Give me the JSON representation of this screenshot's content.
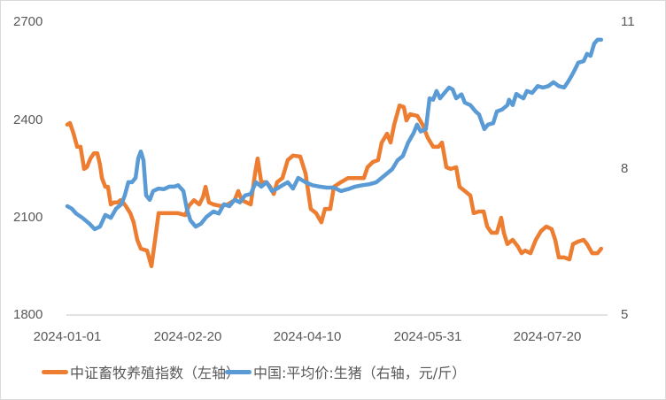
{
  "chart_data": {
    "type": "line",
    "title": "",
    "xlabel": "",
    "ylabel_left": "",
    "ylabel_right": "",
    "x_ticks": [
      "2024-01-01",
      "2024-02-20",
      "2024-04-10",
      "2024-05-31",
      "2024-07-20"
    ],
    "x_range_days": [
      0,
      222
    ],
    "x_start_date": "2024-01-01",
    "y_left": {
      "ticks": [
        "1800",
        "2100",
        "2400",
        "2700"
      ],
      "range": [
        1800,
        2700
      ]
    },
    "y_right": {
      "ticks": [
        "5",
        "8",
        "11"
      ],
      "range": [
        5,
        11
      ]
    },
    "grid": false,
    "legend_position": "bottom",
    "series": [
      {
        "name": "中证畜牧养殖指数（左轴）",
        "axis": "left",
        "color": "#ed7d31",
        "points": [
          [
            0,
            2385
          ],
          [
            1.1,
            2390
          ],
          [
            2.6,
            2357
          ],
          [
            4.1,
            2317
          ],
          [
            5.5,
            2317
          ],
          [
            7,
            2249
          ],
          [
            8.1,
            2254
          ],
          [
            9.6,
            2281
          ],
          [
            11.1,
            2297
          ],
          [
            12.5,
            2297
          ],
          [
            13.6,
            2262
          ],
          [
            14.4,
            2221
          ],
          [
            15.8,
            2194
          ],
          [
            16.9,
            2194
          ],
          [
            18.1,
            2140
          ],
          [
            19.5,
            2146
          ],
          [
            21,
            2146
          ],
          [
            22.1,
            2153
          ],
          [
            23.2,
            2146
          ],
          [
            24.3,
            2135
          ],
          [
            26.2,
            2113
          ],
          [
            27.6,
            2085
          ],
          [
            29.1,
            2031
          ],
          [
            30.6,
            2004
          ],
          [
            33.2,
            1998
          ],
          [
            35,
            1950
          ],
          [
            36.5,
            2031
          ],
          [
            38,
            2113
          ],
          [
            42.4,
            2113
          ],
          [
            46.1,
            2113
          ],
          [
            49.1,
            2107
          ],
          [
            50.5,
            2135
          ],
          [
            52.7,
            2153
          ],
          [
            54.9,
            2140
          ],
          [
            56.4,
            2162
          ],
          [
            57.5,
            2194
          ],
          [
            58.9,
            2146
          ],
          [
            60.8,
            2140
          ],
          [
            63.7,
            2135
          ],
          [
            66.7,
            2140
          ],
          [
            69.6,
            2153
          ],
          [
            71.1,
            2181
          ],
          [
            72.6,
            2153
          ],
          [
            76.3,
            2140
          ],
          [
            78.1,
            2235
          ],
          [
            79.2,
            2281
          ],
          [
            80.7,
            2208
          ],
          [
            82.9,
            2208
          ],
          [
            84.4,
            2194
          ],
          [
            85.9,
            2172
          ],
          [
            87.3,
            2208
          ],
          [
            89.5,
            2221
          ],
          [
            91.7,
            2276
          ],
          [
            93.9,
            2290
          ],
          [
            96.9,
            2287
          ],
          [
            99.1,
            2235
          ],
          [
            101.3,
            2126
          ],
          [
            103.5,
            2113
          ],
          [
            105.7,
            2085
          ],
          [
            107.2,
            2126
          ],
          [
            109.4,
            2126
          ],
          [
            110.9,
            2194
          ],
          [
            113.8,
            2208
          ],
          [
            116.8,
            2221
          ],
          [
            119,
            2221
          ],
          [
            123.4,
            2221
          ],
          [
            124.9,
            2254
          ],
          [
            127.1,
            2270
          ],
          [
            129.3,
            2276
          ],
          [
            130.8,
            2330
          ],
          [
            133,
            2357
          ],
          [
            134.5,
            2330
          ],
          [
            136,
            2385
          ],
          [
            138.2,
            2444
          ],
          [
            140,
            2439
          ],
          [
            141.1,
            2398
          ],
          [
            142.6,
            2417
          ],
          [
            145.6,
            2412
          ],
          [
            147.8,
            2385
          ],
          [
            150,
            2344
          ],
          [
            152.2,
            2317
          ],
          [
            154.4,
            2317
          ],
          [
            155.9,
            2330
          ],
          [
            157.7,
            2254
          ],
          [
            159.5,
            2249
          ],
          [
            161.8,
            2254
          ],
          [
            163.2,
            2194
          ],
          [
            165.4,
            2181
          ],
          [
            167.7,
            2167
          ],
          [
            169.1,
            2113
          ],
          [
            171.3,
            2118
          ],
          [
            173.2,
            2118
          ],
          [
            174.7,
            2072
          ],
          [
            176.5,
            2053
          ],
          [
            178.7,
            2053
          ],
          [
            180.5,
            2099
          ],
          [
            181.6,
            2053
          ],
          [
            183.1,
            2018
          ],
          [
            185.3,
            2031
          ],
          [
            187.5,
            2010
          ],
          [
            189,
            1990
          ],
          [
            190.5,
            1998
          ],
          [
            192.7,
            1990
          ],
          [
            194.9,
            2031
          ],
          [
            197.1,
            2058
          ],
          [
            199.3,
            2072
          ],
          [
            201.5,
            2064
          ],
          [
            203,
            2031
          ],
          [
            204.5,
            1977
          ],
          [
            206.7,
            1977
          ],
          [
            208.9,
            1971
          ],
          [
            210.4,
            2018
          ],
          [
            212.6,
            2026
          ],
          [
            214.8,
            2031
          ],
          [
            216.2,
            2018
          ],
          [
            218.4,
            1990
          ],
          [
            220.6,
            1990
          ],
          [
            222.1,
            2004
          ]
        ]
      },
      {
        "name": "中国:平均价:生猪（右轴，元/斤）",
        "axis": "right",
        "color": "#5b9bd5",
        "points": [
          [
            0,
            7.23
          ],
          [
            1.8,
            7.18
          ],
          [
            3.7,
            7.08
          ],
          [
            6.3,
            6.99
          ],
          [
            9.2,
            6.87
          ],
          [
            11.4,
            6.76
          ],
          [
            13.6,
            6.81
          ],
          [
            15.8,
            7.05
          ],
          [
            18.1,
            6.99
          ],
          [
            20.3,
            7.18
          ],
          [
            22.5,
            7.27
          ],
          [
            23.9,
            7.45
          ],
          [
            25.4,
            7.72
          ],
          [
            26.9,
            7.72
          ],
          [
            28.4,
            7.81
          ],
          [
            29.5,
            8.21
          ],
          [
            30.6,
            8.35
          ],
          [
            31.7,
            8.17
          ],
          [
            32.8,
            7.45
          ],
          [
            34.3,
            7.36
          ],
          [
            35.7,
            7.54
          ],
          [
            37.9,
            7.59
          ],
          [
            40.2,
            7.58
          ],
          [
            42.4,
            7.63
          ],
          [
            44.6,
            7.63
          ],
          [
            46.1,
            7.66
          ],
          [
            48.3,
            7.54
          ],
          [
            49.7,
            7.18
          ],
          [
            51.2,
            6.94
          ],
          [
            53.4,
            6.81
          ],
          [
            55.6,
            6.87
          ],
          [
            57.9,
            7.01
          ],
          [
            60.8,
            7.12
          ],
          [
            63,
            7.08
          ],
          [
            65.2,
            7.27
          ],
          [
            67.4,
            7.23
          ],
          [
            69.6,
            7.36
          ],
          [
            71.8,
            7.31
          ],
          [
            74,
            7.45
          ],
          [
            76.3,
            7.48
          ],
          [
            78.5,
            7.72
          ],
          [
            80.7,
            7.63
          ],
          [
            82.9,
            7.72
          ],
          [
            85.1,
            7.54
          ],
          [
            87.3,
            7.59
          ],
          [
            89.5,
            7.66
          ],
          [
            91.7,
            7.72
          ],
          [
            93.9,
            7.59
          ],
          [
            96.1,
            7.81
          ],
          [
            99.1,
            7.72
          ],
          [
            102,
            7.66
          ],
          [
            105,
            7.63
          ],
          [
            107.9,
            7.61
          ],
          [
            110.9,
            7.61
          ],
          [
            113.8,
            7.54
          ],
          [
            116.8,
            7.58
          ],
          [
            119.7,
            7.63
          ],
          [
            122.7,
            7.66
          ],
          [
            125.6,
            7.68
          ],
          [
            128.6,
            7.72
          ],
          [
            130.8,
            7.81
          ],
          [
            133,
            7.9
          ],
          [
            135.2,
            7.99
          ],
          [
            137.4,
            8.17
          ],
          [
            139.6,
            8.26
          ],
          [
            141.8,
            8.53
          ],
          [
            144,
            8.72
          ],
          [
            145.5,
            8.9
          ],
          [
            147,
            8.76
          ],
          [
            149.2,
            8.81
          ],
          [
            150.7,
            9.44
          ],
          [
            152.2,
            9.41
          ],
          [
            153.6,
            9.59
          ],
          [
            155.1,
            9.44
          ],
          [
            156.6,
            9.53
          ],
          [
            158.8,
            9.66
          ],
          [
            160.3,
            9.62
          ],
          [
            161.8,
            9.44
          ],
          [
            164,
            9.52
          ],
          [
            165.4,
            9.35
          ],
          [
            167.7,
            9.3
          ],
          [
            169.9,
            9.17
          ],
          [
            171.3,
            9.11
          ],
          [
            173.5,
            8.81
          ],
          [
            175,
            8.9
          ],
          [
            177.2,
            8.93
          ],
          [
            178.7,
            9.17
          ],
          [
            180.9,
            9.21
          ],
          [
            183.1,
            9.3
          ],
          [
            183.8,
            9.41
          ],
          [
            185.3,
            9.3
          ],
          [
            186.8,
            9.53
          ],
          [
            188.3,
            9.48
          ],
          [
            189.8,
            9.44
          ],
          [
            191.2,
            9.59
          ],
          [
            193.4,
            9.55
          ],
          [
            195.7,
            9.69
          ],
          [
            197.9,
            9.66
          ],
          [
            200.1,
            9.69
          ],
          [
            202.3,
            9.77
          ],
          [
            204.5,
            9.69
          ],
          [
            206.7,
            9.66
          ],
          [
            208.2,
            9.77
          ],
          [
            209.7,
            9.89
          ],
          [
            211.1,
            10.02
          ],
          [
            212.6,
            10.17
          ],
          [
            214.8,
            10.2
          ],
          [
            216.2,
            10.35
          ],
          [
            217.7,
            10.31
          ],
          [
            219.2,
            10.56
          ],
          [
            220.6,
            10.64
          ],
          [
            222.1,
            10.64
          ]
        ]
      }
    ]
  },
  "legend": {
    "items": [
      {
        "label": "中证畜牧养殖指数（左轴）",
        "color": "#ed7d31"
      },
      {
        "label": "中国:平均价:生猪（右轴，元/斤）",
        "color": "#5b9bd5"
      }
    ]
  },
  "colors": {
    "axis_line": "#d9d9d9",
    "tick_text": "#595959",
    "background": "#ffffff"
  }
}
